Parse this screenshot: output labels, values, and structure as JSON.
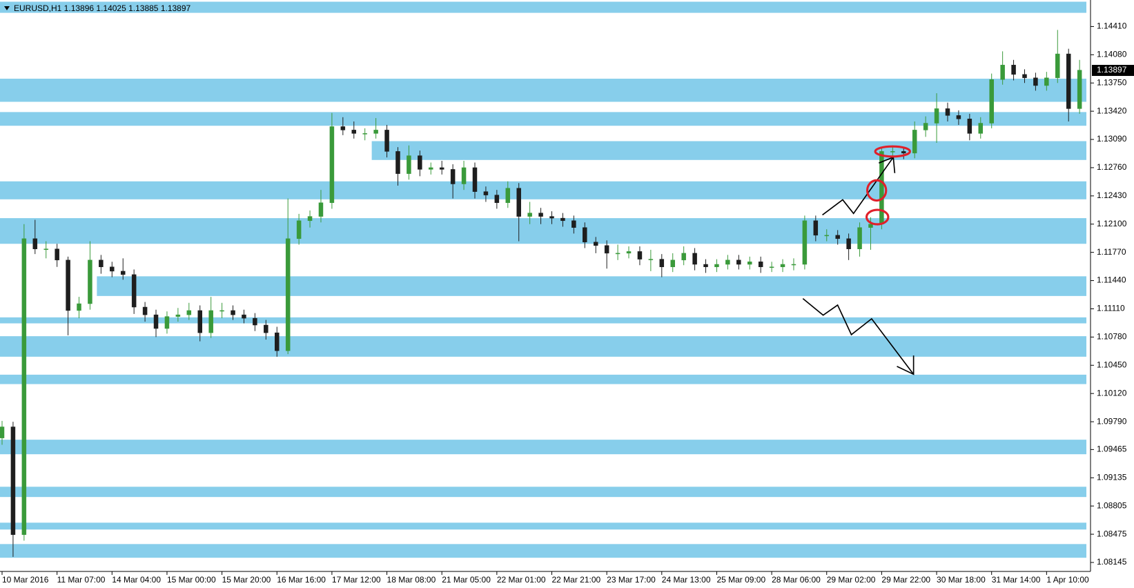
{
  "chart_data": {
    "type": "candlestick",
    "title": "EURUSD,H1  1.13896 1.14025 1.13885 1.13897",
    "last_price": 1.13897,
    "up_color": "#3a9a3a",
    "down_color": "#1e1e1e",
    "zone_color": "#87ceeb",
    "ylim": [
      1.0804,
      1.1472
    ],
    "yticks": [
      {
        "value": 1.1441,
        "label": "1.14410"
      },
      {
        "value": 1.1408,
        "label": "1.14080"
      },
      {
        "value": 1.1375,
        "label": "1.13750"
      },
      {
        "value": 1.1342,
        "label": "1.13420"
      },
      {
        "value": 1.1309,
        "label": "1.13090"
      },
      {
        "value": 1.1276,
        "label": "1.12760"
      },
      {
        "value": 1.1243,
        "label": "1.12430"
      },
      {
        "value": 1.121,
        "label": "1.12100"
      },
      {
        "value": 1.1177,
        "label": "1.11770"
      },
      {
        "value": 1.1144,
        "label": "1.11440"
      },
      {
        "value": 1.1111,
        "label": "1.11110"
      },
      {
        "value": 1.1078,
        "label": "1.10780"
      },
      {
        "value": 1.1045,
        "label": "1.10450"
      },
      {
        "value": 1.1012,
        "label": "1.10120"
      },
      {
        "value": 1.0979,
        "label": "1.09790"
      },
      1.09465,
      1.09135,
      1.08805,
      1.08475,
      1.08145
    ],
    "categories": [
      "10 Mar 2016",
      null,
      null,
      null,
      null,
      "11 Mar 07:00",
      null,
      null,
      null,
      null,
      "14 Mar 04:00",
      null,
      null,
      null,
      null,
      "15 Mar 00:00",
      null,
      null,
      null,
      null,
      "15 Mar 20:00",
      null,
      null,
      null,
      null,
      "16 Mar 16:00",
      null,
      null,
      null,
      null,
      "17 Mar 12:00",
      null,
      null,
      null,
      null,
      "18 Mar 08:00",
      null,
      null,
      null,
      null,
      "21 Mar 05:00",
      null,
      null,
      null,
      null,
      "22 Mar 01:00",
      null,
      null,
      null,
      null,
      "22 Mar 21:00",
      null,
      null,
      null,
      null,
      "23 Mar 17:00",
      null,
      null,
      null,
      null,
      "24 Mar 13:00",
      null,
      null,
      null,
      null,
      "25 Mar 09:00",
      null,
      null,
      null,
      null,
      "28 Mar 06:00",
      null,
      null,
      null,
      null,
      "29 Mar 02:00",
      null,
      null,
      null,
      null,
      "29 Mar 22:00",
      null,
      null,
      null,
      null,
      "30 Mar 18:00",
      null,
      null,
      null,
      null,
      "31 Mar 14:00",
      null,
      null,
      null,
      null,
      "1 Apr 10:00",
      null,
      null,
      null
    ],
    "ohlc": [
      [
        1.096,
        1.098,
        1.0952,
        1.0973
      ],
      [
        1.0973,
        1.0979,
        1.0821,
        1.0847
      ],
      [
        1.0847,
        1.121,
        1.084,
        1.1193
      ],
      [
        1.1193,
        1.1215,
        1.1175,
        1.1181
      ],
      [
        1.1181,
        1.119,
        1.117,
        1.1181
      ],
      [
        1.1181,
        1.1187,
        1.116,
        1.1168
      ],
      [
        1.1168,
        1.1172,
        1.108,
        1.1109
      ],
      [
        1.1109,
        1.1125,
        1.11,
        1.1117
      ],
      [
        1.1117,
        1.119,
        1.111,
        1.1168
      ],
      [
        1.1168,
        1.1174,
        1.1152,
        1.116
      ],
      [
        1.116,
        1.1166,
        1.1148,
        1.1155
      ],
      [
        1.1155,
        1.117,
        1.1145,
        1.1151
      ],
      [
        1.1151,
        1.1157,
        1.1105,
        1.1113
      ],
      [
        1.1113,
        1.1119,
        1.1096,
        1.1104
      ],
      [
        1.1104,
        1.111,
        1.1078,
        1.1088
      ],
      [
        1.1088,
        1.1108,
        1.1082,
        1.1102
      ],
      [
        1.1102,
        1.1112,
        1.1096,
        1.1104
      ],
      [
        1.1104,
        1.1118,
        1.1098,
        1.1109
      ],
      [
        1.1109,
        1.1115,
        1.1073,
        1.1083
      ],
      [
        1.1083,
        1.1125,
        1.1077,
        1.1109
      ],
      [
        1.1109,
        1.1118,
        1.11,
        1.1109
      ],
      [
        1.1109,
        1.1115,
        1.1098,
        1.1104
      ],
      [
        1.1104,
        1.111,
        1.1094,
        1.11
      ],
      [
        1.11,
        1.1106,
        1.1085,
        1.1092
      ],
      [
        1.1092,
        1.1098,
        1.1075,
        1.1083
      ],
      [
        1.1083,
        1.109,
        1.1055,
        1.1062
      ],
      [
        1.1062,
        1.124,
        1.1058,
        1.1193
      ],
      [
        1.1193,
        1.1222,
        1.1186,
        1.1214
      ],
      [
        1.1214,
        1.1226,
        1.1206,
        1.1219
      ],
      [
        1.1219,
        1.125,
        1.1212,
        1.1235
      ],
      [
        1.1235,
        1.134,
        1.1228,
        1.1324
      ],
      [
        1.1324,
        1.1335,
        1.1314,
        1.132
      ],
      [
        1.132,
        1.133,
        1.131,
        1.1316
      ],
      [
        1.1316,
        1.1322,
        1.1308,
        1.1316
      ],
      [
        1.1316,
        1.1334,
        1.131,
        1.132
      ],
      [
        1.132,
        1.1326,
        1.1288,
        1.1295
      ],
      [
        1.1295,
        1.13,
        1.1255,
        1.1269
      ],
      [
        1.1269,
        1.1302,
        1.1262,
        1.129
      ],
      [
        1.129,
        1.1296,
        1.1266,
        1.1274
      ],
      [
        1.1274,
        1.1282,
        1.1268,
        1.1276
      ],
      [
        1.1276,
        1.1284,
        1.1268,
        1.1274
      ],
      [
        1.1274,
        1.128,
        1.124,
        1.1257
      ],
      [
        1.1257,
        1.1284,
        1.125,
        1.1276
      ],
      [
        1.1276,
        1.1282,
        1.124,
        1.1248
      ],
      [
        1.1248,
        1.1254,
        1.1236,
        1.1244
      ],
      [
        1.1244,
        1.125,
        1.1228,
        1.1235
      ],
      [
        1.1235,
        1.126,
        1.1229,
        1.1252
      ],
      [
        1.1252,
        1.1258,
        1.119,
        1.1219
      ],
      [
        1.1219,
        1.1236,
        1.121,
        1.1223
      ],
      [
        1.1223,
        1.1229,
        1.121,
        1.1219
      ],
      [
        1.1219,
        1.1225,
        1.121,
        1.1217
      ],
      [
        1.1217,
        1.1223,
        1.1207,
        1.1214
      ],
      [
        1.1214,
        1.122,
        1.1199,
        1.1206
      ],
      [
        1.1206,
        1.1212,
        1.1182,
        1.1189
      ],
      [
        1.1189,
        1.1195,
        1.1176,
        1.1185
      ],
      [
        1.1185,
        1.1191,
        1.1158,
        1.1176
      ],
      [
        1.1176,
        1.1186,
        1.1168,
        1.1176
      ],
      [
        1.1176,
        1.1184,
        1.117,
        1.1178
      ],
      [
        1.1178,
        1.1184,
        1.1162,
        1.1169
      ],
      [
        1.1169,
        1.118,
        1.1155,
        1.1169
      ],
      [
        1.1169,
        1.1175,
        1.1148,
        1.116
      ],
      [
        1.116,
        1.1176,
        1.1154,
        1.1168
      ],
      [
        1.1168,
        1.1184,
        1.1162,
        1.1176
      ],
      [
        1.1176,
        1.1182,
        1.1156,
        1.1163
      ],
      [
        1.1163,
        1.1169,
        1.1153,
        1.116
      ],
      [
        1.116,
        1.1169,
        1.1154,
        1.1163
      ],
      [
        1.1163,
        1.1174,
        1.1157,
        1.1168
      ],
      [
        1.1168,
        1.1174,
        1.1157,
        1.1163
      ],
      [
        1.1163,
        1.1172,
        1.1157,
        1.1166
      ],
      [
        1.1166,
        1.1172,
        1.1153,
        1.116
      ],
      [
        1.116,
        1.1166,
        1.1154,
        1.116
      ],
      [
        1.116,
        1.1169,
        1.1154,
        1.1163
      ],
      [
        1.1163,
        1.117,
        1.1156,
        1.1163
      ],
      [
        1.1163,
        1.122,
        1.1157,
        1.1214
      ],
      [
        1.1214,
        1.122,
        1.119,
        1.1197
      ],
      [
        1.1197,
        1.1204,
        1.119,
        1.1197
      ],
      [
        1.1197,
        1.1203,
        1.1186,
        1.1193
      ],
      [
        1.1193,
        1.1199,
        1.1168,
        1.1181
      ],
      [
        1.1181,
        1.1212,
        1.1172,
        1.1206
      ],
      [
        1.1206,
        1.1218,
        1.118,
        1.121
      ],
      [
        1.121,
        1.13,
        1.1204,
        1.1295
      ],
      [
        1.1295,
        1.1302,
        1.1288,
        1.1295
      ],
      [
        1.1295,
        1.13,
        1.1286,
        1.1293
      ],
      [
        1.1293,
        1.133,
        1.1287,
        1.132
      ],
      [
        1.132,
        1.1336,
        1.1312,
        1.1328
      ],
      [
        1.1328,
        1.1363,
        1.1305,
        1.1345
      ],
      [
        1.1345,
        1.1352,
        1.133,
        1.1337
      ],
      [
        1.1337,
        1.1343,
        1.1326,
        1.1333
      ],
      [
        1.1333,
        1.1339,
        1.1308,
        1.1316
      ],
      [
        1.1316,
        1.1335,
        1.131,
        1.1328
      ],
      [
        1.1328,
        1.1386,
        1.1322,
        1.1379
      ],
      [
        1.1379,
        1.1412,
        1.1373,
        1.1396
      ],
      [
        1.1396,
        1.1402,
        1.1378,
        1.1385
      ],
      [
        1.1385,
        1.1391,
        1.1375,
        1.1381
      ],
      [
        1.1381,
        1.1387,
        1.1366,
        1.1372
      ],
      [
        1.1372,
        1.1388,
        1.1366,
        1.1381
      ],
      [
        1.1381,
        1.1437,
        1.1375,
        1.1409
      ],
      [
        1.1409,
        1.1415,
        1.133,
        1.1345
      ],
      [
        1.1345,
        1.1402,
        1.1339,
        1.139
      ]
    ],
    "zones": [
      {
        "low": 1.1457,
        "high": 1.147,
        "start": 0
      },
      {
        "low": 1.1353,
        "high": 1.138,
        "start": 0
      },
      {
        "low": 1.1325,
        "high": 1.1341,
        "start": 0
      },
      {
        "low": 1.1285,
        "high": 1.1307,
        "start": 34
      },
      {
        "low": 1.1239,
        "high": 1.126,
        "start": 0
      },
      {
        "low": 1.1187,
        "high": 1.1217,
        "start": 0
      },
      {
        "low": 1.1126,
        "high": 1.1149,
        "start": 9
      },
      {
        "low": 1.1094,
        "high": 1.1101,
        "start": 0
      },
      {
        "low": 1.1055,
        "high": 1.1079,
        "start": 0
      },
      {
        "low": 1.1023,
        "high": 1.1034,
        "start": 0
      },
      {
        "low": 1.0941,
        "high": 1.0958,
        "start": 0
      },
      {
        "low": 1.0891,
        "high": 1.0903,
        "start": 0
      },
      {
        "low": 1.0853,
        "high": 1.0861,
        "start": 0
      },
      {
        "low": 1.082,
        "high": 1.0836,
        "start": 0
      }
    ]
  }
}
